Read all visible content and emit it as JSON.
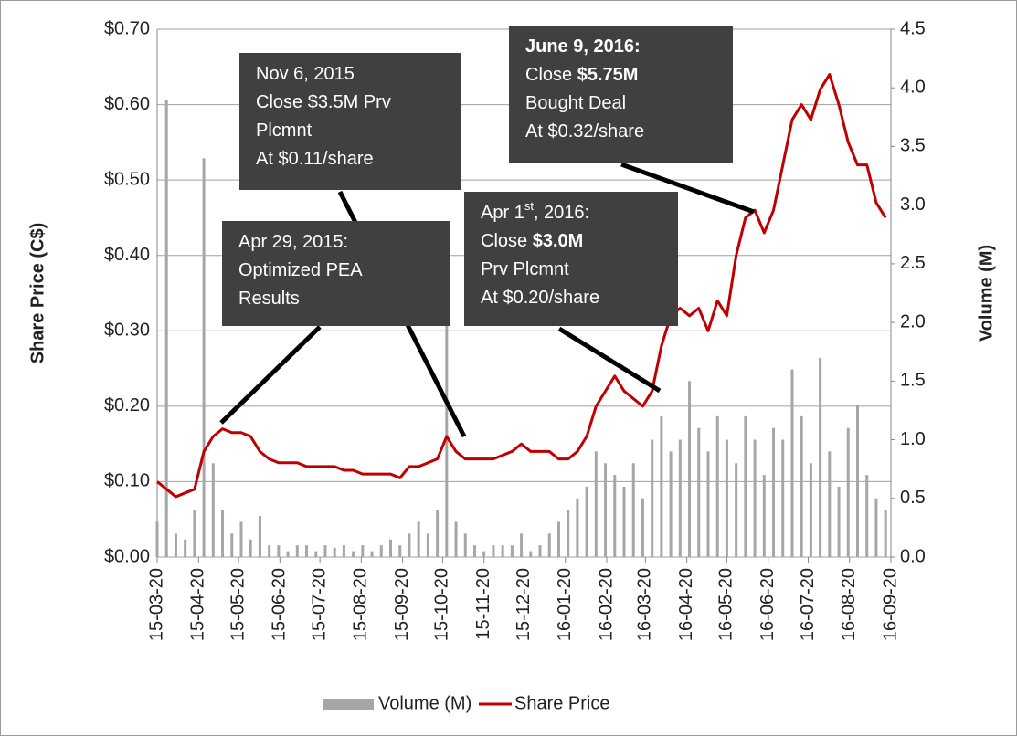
{
  "chart_data": {
    "type": "bar-line",
    "y_label": "Share Price (C$)",
    "y2_label": "Volume (M)",
    "xlim": [
      "15-03-20",
      "16-09-20"
    ],
    "xticks": [
      "15-03-20",
      "15-04-20",
      "15-05-20",
      "15-06-20",
      "15-07-20",
      "15-08-20",
      "15-09-20",
      "15-10-20",
      "15-11-20",
      "15-12-20",
      "16-01-20",
      "16-02-20",
      "16-03-20",
      "16-04-20",
      "16-05-20",
      "16-06-20",
      "16-07-20",
      "16-08-20",
      "16-09-20"
    ],
    "ylim": [
      0,
      0.7
    ],
    "yticks": [
      {
        "value": 0,
        "label": "$0.00"
      },
      {
        "value": 0.1,
        "label": "$0.10"
      },
      {
        "value": 0.2,
        "label": "$0.20"
      },
      {
        "value": 0.3,
        "label": "$0.30"
      },
      {
        "value": 0.4,
        "label": "$0.40"
      },
      {
        "value": 0.5,
        "label": "$0.50"
      },
      {
        "value": 0.6,
        "label": "$0.60"
      },
      {
        "value": 0.7,
        "label": "$0.70"
      }
    ],
    "y2lim": [
      0,
      4.5
    ],
    "y2ticks": [
      {
        "value": 0,
        "label": "0.0"
      },
      0.5,
      {
        "value": 1,
        "label": "1.0"
      },
      1.5,
      {
        "value": 2,
        "label": "2.0"
      },
      2.5,
      {
        "value": 3,
        "label": "3.0"
      },
      3.5,
      {
        "value": 4,
        "label": "4.0"
      },
      4.5
    ],
    "grid": true,
    "x": [
      "15-03-20",
      "15-03-27",
      "15-04-03",
      "15-04-10",
      "15-04-17",
      "15-04-24",
      "15-05-01",
      "15-05-08",
      "15-05-15",
      "15-05-22",
      "15-05-29",
      "15-06-05",
      "15-06-12",
      "15-06-19",
      "15-06-26",
      "15-07-03",
      "15-07-10",
      "15-07-17",
      "15-07-24",
      "15-07-31",
      "15-08-07",
      "15-08-14",
      "15-08-21",
      "15-08-28",
      "15-09-04",
      "15-09-11",
      "15-09-18",
      "15-09-25",
      "15-10-02",
      "15-10-09",
      "15-10-16",
      "15-10-23",
      "15-10-30",
      "15-11-06",
      "15-11-13",
      "15-11-20",
      "15-11-27",
      "15-12-04",
      "15-12-11",
      "15-12-18",
      "15-12-25",
      "16-01-01",
      "16-01-08",
      "16-01-15",
      "16-01-22",
      "16-01-29",
      "16-02-05",
      "16-02-12",
      "16-02-19",
      "16-02-26",
      "16-03-04",
      "16-03-11",
      "16-03-18",
      "16-03-25",
      "16-04-01",
      "16-04-08",
      "16-04-15",
      "16-04-22",
      "16-04-29",
      "16-05-06",
      "16-05-13",
      "16-05-20",
      "16-05-27",
      "16-06-03",
      "16-06-10",
      "16-06-17",
      "16-06-24",
      "16-07-01",
      "16-07-08",
      "16-07-15",
      "16-07-22",
      "16-07-29",
      "16-08-05",
      "16-08-12",
      "16-08-19",
      "16-08-26",
      "16-09-02",
      "16-09-09",
      "16-09-16"
    ],
    "series": [
      {
        "name": "Volume (M)",
        "color": "#a6a6a6",
        "axis": "y2",
        "kind": "bar",
        "values": [
          0.3,
          3.9,
          0.2,
          0.15,
          0.4,
          3.4,
          0.8,
          0.4,
          0.2,
          0.3,
          0.15,
          0.35,
          0.1,
          0.1,
          0.05,
          0.1,
          0.1,
          0.05,
          0.1,
          0.08,
          0.1,
          0.05,
          0.1,
          0.05,
          0.1,
          0.15,
          0.1,
          0.2,
          0.3,
          0.2,
          0.4,
          2.0,
          0.3,
          0.2,
          0.1,
          0.05,
          0.1,
          0.1,
          0.1,
          0.2,
          0.05,
          0.1,
          0.2,
          0.3,
          0.4,
          0.5,
          0.6,
          0.9,
          0.8,
          0.7,
          0.6,
          0.8,
          0.5,
          1.0,
          1.2,
          0.9,
          1.0,
          1.5,
          1.1,
          0.9,
          1.2,
          1.0,
          0.8,
          1.2,
          1.0,
          0.7,
          1.1,
          1.0,
          1.6,
          1.2,
          0.8,
          1.7,
          0.9,
          0.6,
          1.1,
          1.3,
          0.7,
          0.5,
          0.4
        ]
      },
      {
        "name": "Share Price",
        "color": "#c00000",
        "axis": "y",
        "kind": "line",
        "values": [
          0.1,
          0.09,
          0.08,
          0.085,
          0.09,
          0.14,
          0.16,
          0.17,
          0.165,
          0.165,
          0.16,
          0.14,
          0.13,
          0.125,
          0.125,
          0.125,
          0.12,
          0.12,
          0.12,
          0.12,
          0.115,
          0.115,
          0.11,
          0.11,
          0.11,
          0.11,
          0.105,
          0.12,
          0.12,
          0.125,
          0.13,
          0.16,
          0.14,
          0.13,
          0.13,
          0.13,
          0.13,
          0.135,
          0.14,
          0.15,
          0.14,
          0.14,
          0.14,
          0.13,
          0.13,
          0.14,
          0.16,
          0.2,
          0.22,
          0.24,
          0.22,
          0.21,
          0.2,
          0.22,
          0.28,
          0.32,
          0.33,
          0.32,
          0.33,
          0.3,
          0.34,
          0.32,
          0.4,
          0.45,
          0.46,
          0.43,
          0.46,
          0.52,
          0.58,
          0.6,
          0.58,
          0.62,
          0.64,
          0.6,
          0.55,
          0.52,
          0.52,
          0.47,
          0.45
        ]
      }
    ],
    "annotations": [
      {
        "lines": [
          [
            {
              "text": "Nov 6, 2015"
            }
          ],
          [
            {
              "text": "Close $3.5M Prv"
            }
          ],
          [
            {
              "text": "Plcmnt"
            }
          ],
          [
            {
              "text": "At $0.11/share"
            }
          ]
        ]
      },
      {
        "lines": [
          [
            {
              "text": "Apr 29, 2015:"
            }
          ],
          [
            {
              "text": "Optimized PEA"
            }
          ],
          [
            {
              "text": "Results"
            }
          ]
        ]
      },
      {
        "lines": [
          [
            {
              "text": "Apr 1"
            },
            {
              "text": "st",
              "sup": true
            },
            {
              "text": ", 2016:"
            }
          ],
          [
            {
              "text": "Close "
            },
            {
              "text": "$3.0M",
              "bold": true
            }
          ],
          [
            {
              "text": "Prv Plcmnt"
            }
          ],
          [
            {
              "text": "At $0.20/share"
            }
          ]
        ]
      },
      {
        "lines": [
          [
            {
              "text": "June 9, 2016:",
              "bold": true
            }
          ],
          [
            {
              "text": "Close "
            },
            {
              "text": "$5.75M",
              "bold": true
            }
          ],
          [
            {
              "text": "Bought Deal"
            }
          ],
          [
            {
              "text": "At $0.32/share"
            }
          ]
        ]
      }
    ]
  }
}
